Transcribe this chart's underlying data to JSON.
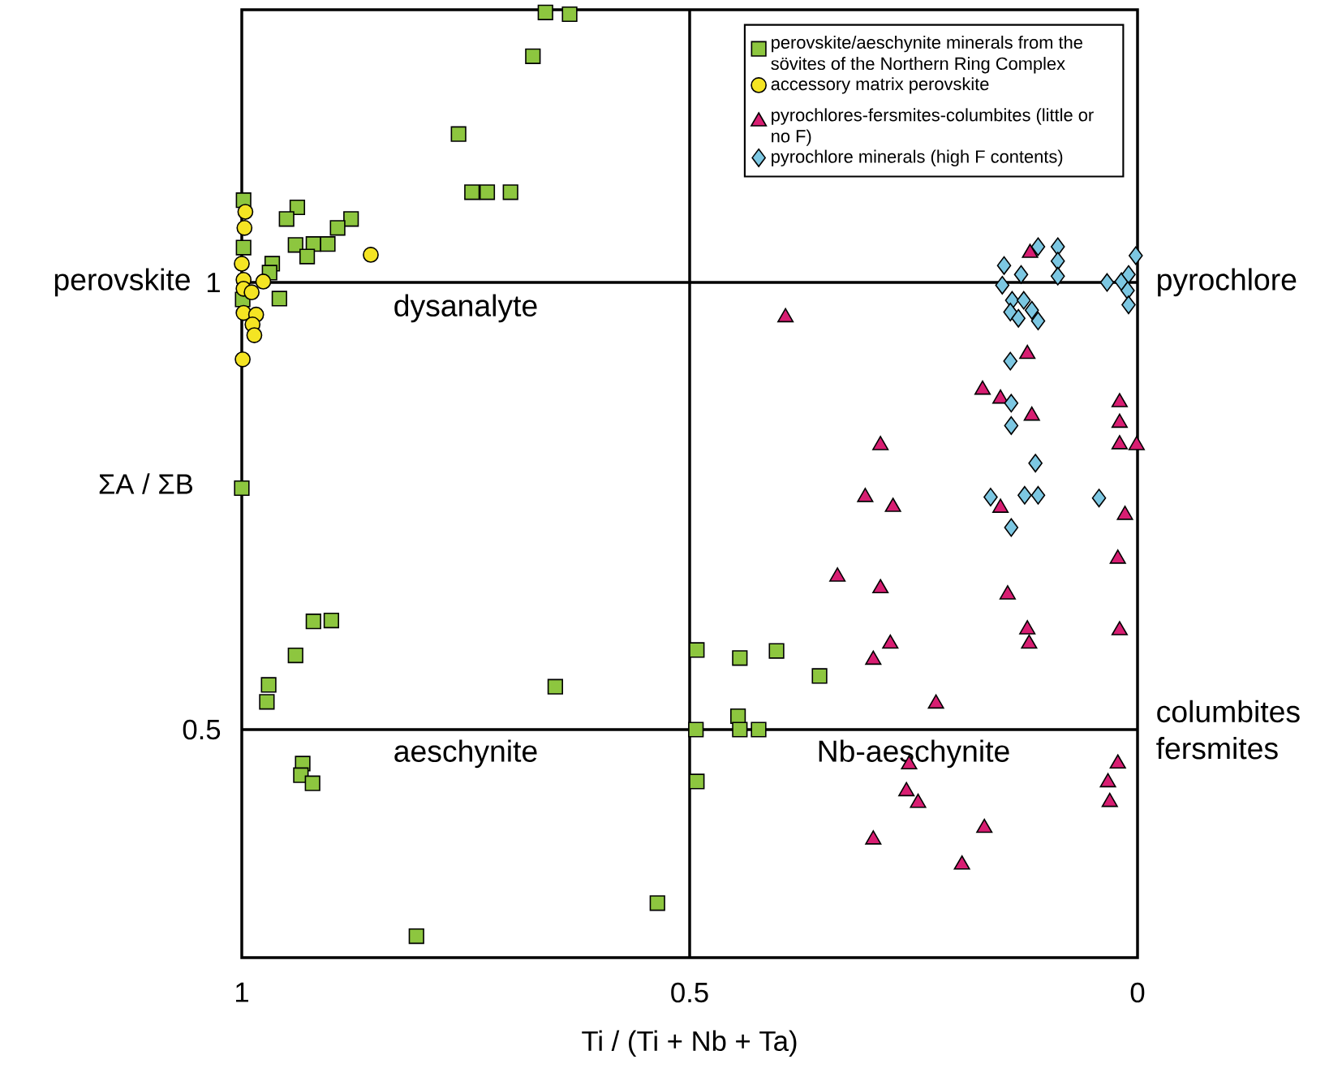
{
  "chart_data": {
    "type": "scatter",
    "xlabel": "Ti / (Ti + Nb + Ta)",
    "ylabel": "ΣA / ΣB",
    "xlim": [
      1,
      0
    ],
    "ylim": [
      0.245,
      1.305
    ],
    "xticks": [
      1,
      0.5,
      0
    ],
    "yticks": [
      0.5,
      1
    ],
    "legend": "top right",
    "series": [
      {
        "name": "perovskite/aeschynite minerals from the sövites of the Northern Ring Complex",
        "color": "#8dc63f",
        "marker": "square",
        "x": [
          0.661,
          0.634,
          0.675,
          0.758,
          0.743,
          0.726,
          0.7,
          0.998,
          0.938,
          0.95,
          0.878,
          0.893,
          0.998,
          0.94,
          0.92,
          0.904,
          0.927,
          0.966,
          0.969,
          0.999,
          0.958,
          1.0,
          0.92,
          0.9,
          0.94,
          0.97,
          0.972,
          0.65,
          0.492,
          0.493,
          0.492,
          0.932,
          0.934,
          0.921,
          0.536,
          0.805,
          0.444,
          0.403,
          0.355,
          0.446,
          0.444,
          0.423
        ],
        "values": [
          1.302,
          1.3,
          1.253,
          1.166,
          1.101,
          1.101,
          1.101,
          1.092,
          1.084,
          1.071,
          1.071,
          1.061,
          1.039,
          1.042,
          1.043,
          1.043,
          1.029,
          1.021,
          1.011,
          0.981,
          0.982,
          0.77,
          0.621,
          0.622,
          0.583,
          0.55,
          0.531,
          0.548,
          0.589,
          0.5,
          0.442,
          0.462,
          0.449,
          0.44,
          0.306,
          0.269,
          0.58,
          0.588,
          0.56,
          0.515,
          0.5,
          0.5
        ]
      },
      {
        "name": "accessory matrix perovskite",
        "color": "#f4e423",
        "marker": "circle",
        "x": [
          0.996,
          0.997,
          1.0,
          0.998,
          0.998,
          0.989,
          0.976,
          0.856,
          0.998,
          0.984,
          0.988,
          0.986,
          0.999
        ],
        "values": [
          1.079,
          1.061,
          1.021,
          1.003,
          0.993,
          0.989,
          1.001,
          1.031,
          0.966,
          0.964,
          0.953,
          0.941,
          0.914
        ]
      },
      {
        "name": "pyrochlores-fersmites-columbites (little or no F)",
        "color": "#d81e72",
        "marker": "triangle",
        "x": [
          0.12,
          0.393,
          0.123,
          0.173,
          0.153,
          0.118,
          0.02,
          0.02,
          0.02,
          0.001,
          0.287,
          0.304,
          0.273,
          0.153,
          0.014,
          0.335,
          0.287,
          0.145,
          0.022,
          0.02,
          0.123,
          0.121,
          0.276,
          0.295,
          0.225,
          0.255,
          0.022,
          0.033,
          0.031,
          0.258,
          0.245,
          0.171,
          0.295,
          0.196
        ],
        "values": [
          1.033,
          0.961,
          0.92,
          0.88,
          0.87,
          0.851,
          0.866,
          0.843,
          0.819,
          0.818,
          0.818,
          0.76,
          0.749,
          0.748,
          0.74,
          0.671,
          0.658,
          0.651,
          0.691,
          0.611,
          0.612,
          0.596,
          0.596,
          0.578,
          0.529,
          0.461,
          0.462,
          0.441,
          0.419,
          0.431,
          0.418,
          0.39,
          0.377,
          0.349
        ]
      },
      {
        "name": "pyrochlore minerals (high F contents)",
        "color": "#7cc7e2",
        "marker": "diamond",
        "x": [
          0.111,
          0.089,
          0.149,
          0.089,
          0.002,
          0.13,
          0.089,
          0.151,
          0.034,
          0.018,
          0.01,
          0.011,
          0.01,
          0.14,
          0.127,
          0.142,
          0.133,
          0.118,
          0.111,
          0.142,
          0.141,
          0.141,
          0.114,
          0.164,
          0.126,
          0.111,
          0.043,
          0.141
        ],
        "values": [
          1.04,
          1.04,
          1.019,
          1.024,
          1.03,
          1.009,
          1.007,
          0.997,
          1.0,
          1.001,
          1.009,
          0.991,
          0.975,
          0.98,
          0.98,
          0.967,
          0.96,
          0.969,
          0.957,
          0.912,
          0.865,
          0.84,
          0.798,
          0.76,
          0.762,
          0.762,
          0.759,
          0.726
        ]
      }
    ],
    "ref_lines": [
      {
        "axis": "x",
        "value": 0.5
      },
      {
        "axis": "y",
        "value": 1
      },
      {
        "axis": "y",
        "value": 0.5
      }
    ],
    "annotations": [
      "dysanalyte",
      "aeschynite",
      "Nb-aeschynite",
      "perovskite",
      "pyrochlore",
      "columbites fersmites"
    ]
  }
}
